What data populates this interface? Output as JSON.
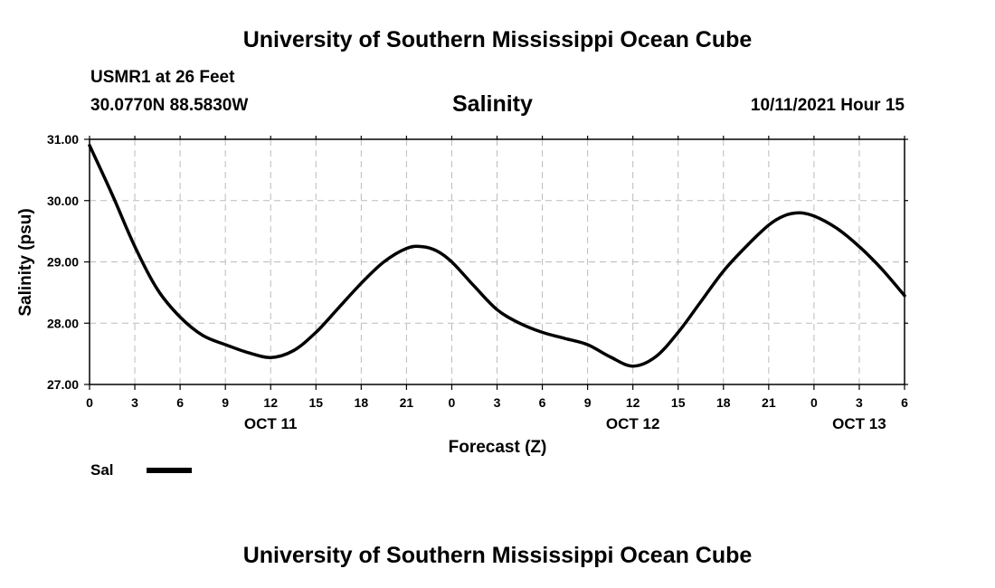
{
  "header": {
    "title": "University of Southern Mississippi Ocean Cube",
    "station": "USMR1 at 26 Feet",
    "coords": "30.0770N  88.5830W",
    "date": "10/11/2021 Hour 15"
  },
  "footer": {
    "title": "University of Southern Mississippi Ocean Cube"
  },
  "legend": {
    "label": "Sal"
  },
  "chart_data": {
    "type": "line",
    "title": "Salinity",
    "xlabel": "Forecast (Z)",
    "ylabel": "Salinity (psu)",
    "xlim": [
      0,
      54
    ],
    "ylim": [
      27.0,
      31.0
    ],
    "grid": true,
    "legend_position": "bottom-left",
    "x_ticks": [
      0,
      3,
      6,
      9,
      12,
      15,
      18,
      21,
      24,
      27,
      30,
      33,
      36,
      39,
      42,
      45,
      48,
      51,
      54
    ],
    "x_tick_labels": [
      "0",
      "3",
      "6",
      "9",
      "12",
      "15",
      "18",
      "21",
      "0",
      "3",
      "6",
      "9",
      "12",
      "15",
      "18",
      "21",
      "0",
      "3",
      "6"
    ],
    "y_ticks": [
      27.0,
      28.0,
      29.0,
      30.0,
      31.0
    ],
    "y_tick_labels": [
      "27.00",
      "28.00",
      "29.00",
      "30.00",
      "31.00"
    ],
    "day_labels": [
      {
        "x": 12,
        "label": "OCT 11"
      },
      {
        "x": 36,
        "label": "OCT 12"
      },
      {
        "x": 51,
        "label": "OCT 13"
      }
    ],
    "series": [
      {
        "name": "Sal",
        "color": "#000000",
        "x": [
          0,
          1.5,
          3,
          4.5,
          6,
          7.5,
          9,
          10.5,
          12,
          13.5,
          15,
          16.5,
          18,
          19.5,
          21,
          22,
          23,
          24,
          25.5,
          27,
          28.5,
          30,
          31.5,
          33,
          34.5,
          36,
          37.5,
          39,
          40.5,
          42,
          43.5,
          45,
          46,
          47,
          48,
          49.5,
          51,
          52.5,
          54
        ],
        "values": [
          30.9,
          30.1,
          29.25,
          28.55,
          28.1,
          27.8,
          27.65,
          27.52,
          27.44,
          27.55,
          27.85,
          28.25,
          28.65,
          29.0,
          29.22,
          29.25,
          29.18,
          29.0,
          28.6,
          28.22,
          28.0,
          27.85,
          27.75,
          27.65,
          27.45,
          27.3,
          27.45,
          27.85,
          28.35,
          28.85,
          29.25,
          29.6,
          29.75,
          29.8,
          29.75,
          29.55,
          29.25,
          28.88,
          28.45
        ]
      }
    ]
  }
}
